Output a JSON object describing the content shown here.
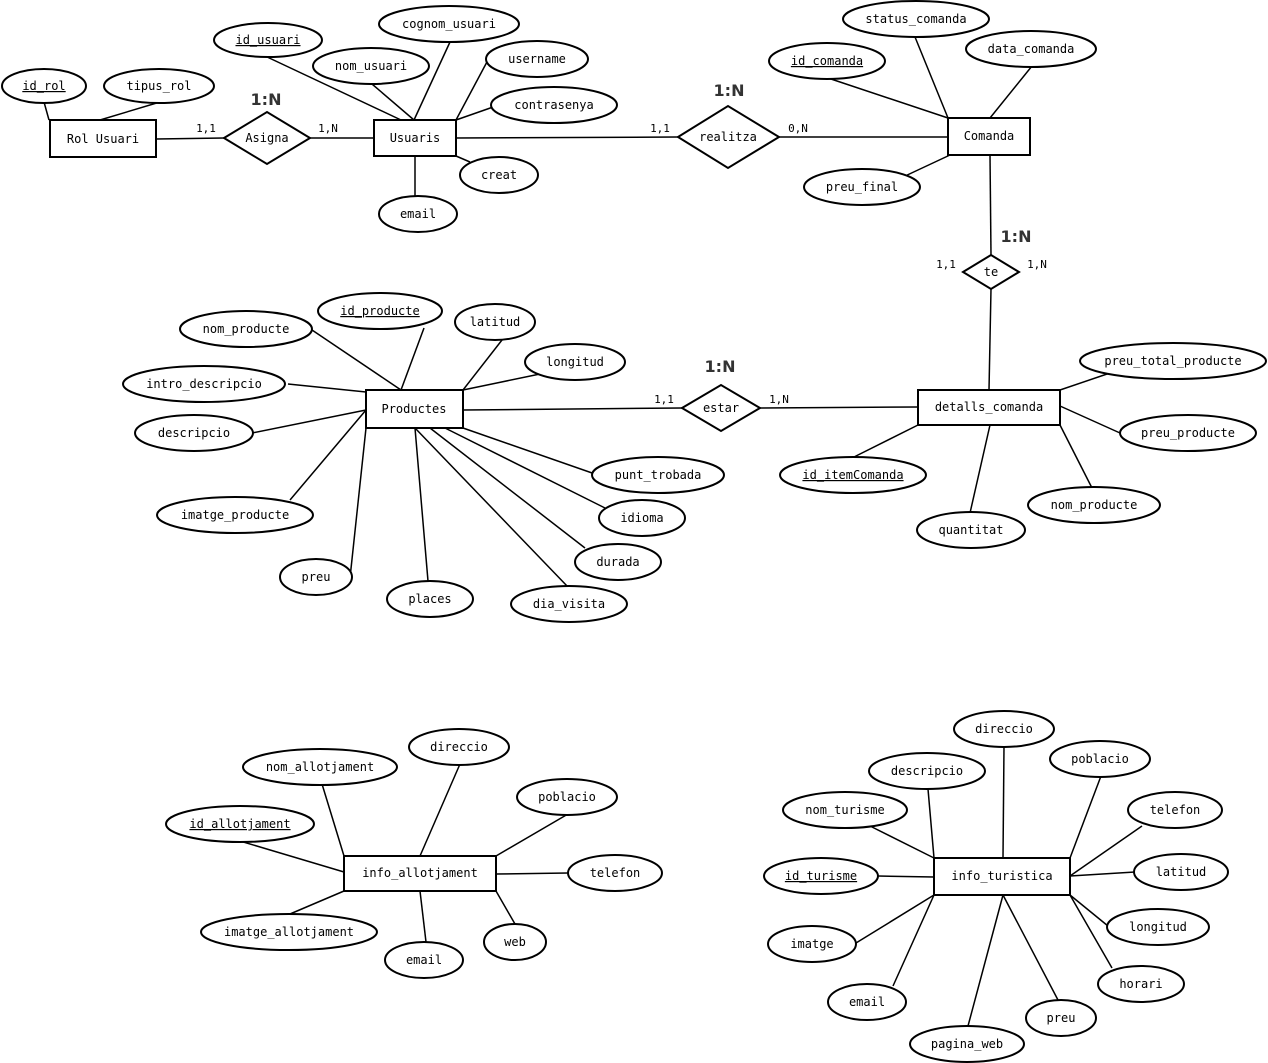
{
  "entities": {
    "rol_usuari": "Rol Usuari",
    "usuaris": "Usuaris",
    "comanda": "Comanda",
    "productes": "Productes",
    "detalls_comanda": "detalls_comanda",
    "info_allotjament": "info_allotjament",
    "info_turistica": "info_turistica"
  },
  "relationships": {
    "asigna": "Asigna",
    "realitza": "realitza",
    "te": "te",
    "estar": "estar"
  },
  "ratios": {
    "asigna": "1:N",
    "realitza": "1:N",
    "te": "1:N",
    "estar": "1:N"
  },
  "cardinalities": {
    "asigna_rol": "1,1",
    "asigna_usuaris": "1,N",
    "realitza_usuaris": "1,1",
    "realitza_comanda": "0,N",
    "te_comanda": "1,1",
    "te_detalls": "1,N",
    "estar_productes": "1,1",
    "estar_detalls": "1,N"
  },
  "attributes": {
    "rol_usuari": {
      "id_rol": "id_rol",
      "tipus_rol": "tipus_rol"
    },
    "usuaris": {
      "id_usuari": "id_usuari",
      "nom_usuari": "nom_usuari",
      "cognom_usuari": "cognom_usuari",
      "username": "username",
      "contrasenya": "contrasenya",
      "creat": "creat",
      "email": "email"
    },
    "comanda": {
      "status_comanda": "status_comanda",
      "data_comanda": "data_comanda",
      "id_comanda": "id_comanda",
      "preu_final": "preu_final"
    },
    "productes": {
      "id_producte": "id_producte",
      "nom_producte": "nom_producte",
      "latitud": "latitud",
      "longitud": "longitud",
      "intro_descripcio": "intro_descripcio",
      "descripcio": "descripcio",
      "imatge_producte": "imatge_producte",
      "preu": "preu",
      "places": "places",
      "dia_visita": "dia_visita",
      "durada": "durada",
      "idioma": "idioma",
      "punt_trobada": "punt_trobada"
    },
    "detalls_comanda": {
      "preu_total_producte": "preu_total_producte",
      "preu_producte": "preu_producte",
      "id_itemComanda": "id_itemComanda",
      "nom_producte": "nom_producte",
      "quantitat": "quantitat"
    },
    "info_allotjament": {
      "nom_allotjament": "nom_allotjament",
      "direccio": "direccio",
      "poblacio": "poblacio",
      "id_allotjament": "id_allotjament",
      "telefon": "telefon",
      "imatge_allotjament": "imatge_allotjament",
      "email": "email",
      "web": "web"
    },
    "info_turistica": {
      "direccio": "direccio",
      "descripcio": "descripcio",
      "poblacio": "poblacio",
      "nom_turisme": "nom_turisme",
      "telefon": "telefon",
      "id_turisme": "id_turisme",
      "latitud": "latitud",
      "longitud": "longitud",
      "imatge": "imatge",
      "horari": "horari",
      "email": "email",
      "preu": "preu",
      "pagina_web": "pagina_web"
    }
  }
}
